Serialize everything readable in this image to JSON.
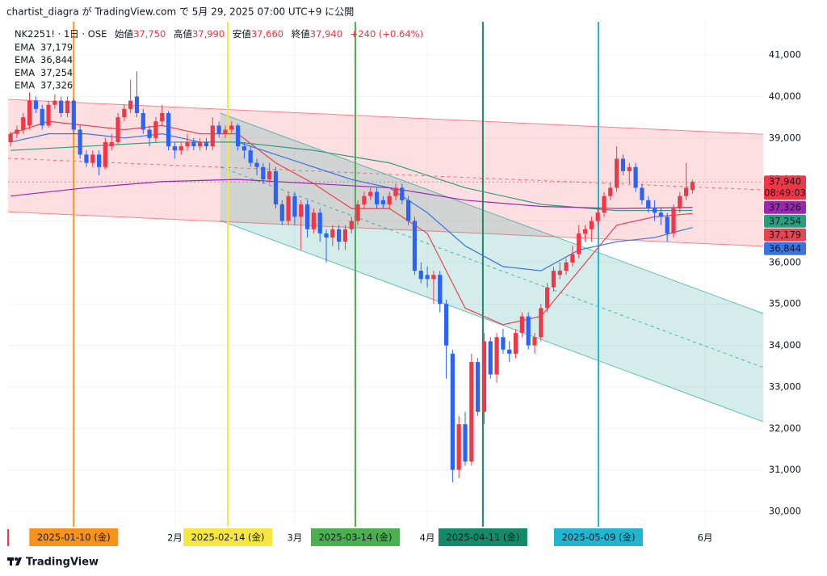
{
  "header": {
    "published": "chartist_diagra が TradingView.com で 5月 29, 2025 07:00 UTC+9 に公開"
  },
  "chart_data": {
    "type": "candlestick",
    "symbol": "NK2251! · 1日 · OSE",
    "ohlc_legend": [
      {
        "name": "始値",
        "value": "37,750"
      },
      {
        "name": "高値",
        "value": "37,990"
      },
      {
        "name": "安値",
        "value": "37,660"
      },
      {
        "name": "終値",
        "value": "37,940"
      }
    ],
    "change": "+240 (+0.64%)",
    "countdown": "08:49:03",
    "up_color": "#f23645",
    "down_color": "#2962ff",
    "grid": true,
    "xlim": [
      -0.4,
      119.2
    ],
    "ylim": [
      29630,
      41800
    ],
    "yticks": [
      {
        "value": 30000,
        "label": "30,000"
      },
      {
        "value": 31000,
        "label": "31,000"
      },
      {
        "value": 32000,
        "label": "32,000"
      },
      {
        "value": 33000,
        "label": "33,000"
      },
      {
        "value": 34000,
        "label": "34,000"
      },
      {
        "value": 35000,
        "label": "35,000"
      },
      {
        "value": 36000,
        "label": "36,000"
      },
      {
        "value": 37000,
        "label": "37,000"
      },
      {
        "value": 38000,
        "label": "38,000"
      },
      {
        "value": 39000,
        "label": "39,000"
      },
      {
        "value": 40000,
        "label": "40,000"
      },
      {
        "value": 41000,
        "label": "41,000"
      }
    ],
    "xticks": [
      {
        "value": 26,
        "label": "2月"
      },
      {
        "value": 45,
        "label": "3月"
      },
      {
        "value": 66,
        "label": "4月"
      },
      {
        "value": 110,
        "label": "6月"
      }
    ],
    "candles": [
      [
        38900,
        39150,
        38800,
        39100
      ],
      [
        39100,
        39300,
        39000,
        39200
      ],
      [
        39200,
        39600,
        39100,
        39500
      ],
      [
        39300,
        40100,
        39200,
        39900
      ],
      [
        39900,
        40000,
        39600,
        39700
      ],
      [
        39700,
        39800,
        39200,
        39300
      ],
      [
        39300,
        39900,
        39250,
        39800
      ],
      [
        39800,
        40050,
        39700,
        39900
      ],
      [
        39900,
        40000,
        39500,
        39600
      ],
      [
        39600,
        40000,
        39500,
        39900
      ],
      [
        39900,
        39950,
        39100,
        39200
      ],
      [
        39200,
        39300,
        38500,
        38600
      ],
      [
        38600,
        38700,
        38300,
        38400
      ],
      [
        38400,
        38700,
        38300,
        38600
      ],
      [
        38600,
        38700,
        38100,
        38300
      ],
      [
        38300,
        39000,
        38250,
        38900
      ],
      [
        38800,
        39100,
        38700,
        38900
      ],
      [
        38900,
        39600,
        38850,
        39500
      ],
      [
        39500,
        39800,
        39400,
        39700
      ],
      [
        39700,
        40400,
        39600,
        39900
      ],
      [
        40000,
        40600,
        39500,
        39600
      ],
      [
        39600,
        39700,
        39100,
        39200
      ],
      [
        39200,
        39300,
        38800,
        39000
      ],
      [
        39000,
        39500,
        38900,
        39400
      ],
      [
        39400,
        39800,
        39300,
        39600
      ],
      [
        39600,
        39650,
        38700,
        38800
      ],
      [
        38800,
        38900,
        38500,
        38700
      ],
      [
        38700,
        38900,
        38600,
        38800
      ],
      [
        38800,
        39100,
        38700,
        38900
      ],
      [
        38900,
        39000,
        38700,
        38800
      ],
      [
        38800,
        39000,
        38700,
        38900
      ],
      [
        38900,
        39000,
        38700,
        38800
      ],
      [
        38800,
        39500,
        38700,
        39300
      ],
      [
        39300,
        39400,
        39000,
        39100
      ],
      [
        39100,
        39300,
        39000,
        39200
      ],
      [
        39200,
        39400,
        39100,
        39300
      ],
      [
        39300,
        39350,
        38700,
        38800
      ],
      [
        38800,
        38900,
        38500,
        38700
      ],
      [
        38700,
        38800,
        38300,
        38400
      ],
      [
        38400,
        38500,
        38100,
        38300
      ],
      [
        38300,
        38400,
        37900,
        38000
      ],
      [
        38000,
        38400,
        37900,
        38200
      ],
      [
        38200,
        38300,
        37300,
        37400
      ],
      [
        37400,
        37500,
        36900,
        37000
      ],
      [
        37000,
        37700,
        36900,
        37600
      ],
      [
        37600,
        37700,
        36900,
        37100
      ],
      [
        37100,
        37500,
        36300,
        37400
      ],
      [
        37400,
        37500,
        36600,
        36800
      ],
      [
        36800,
        37300,
        36700,
        37200
      ],
      [
        37200,
        37300,
        36500,
        36700
      ],
      [
        36700,
        36800,
        36000,
        36600
      ],
      [
        36600,
        36900,
        36400,
        36800
      ],
      [
        36800,
        36900,
        36300,
        36500
      ],
      [
        36500,
        36900,
        36300,
        36800
      ],
      [
        36800,
        37100,
        36700,
        37000
      ],
      [
        37000,
        37500,
        36900,
        37400
      ],
      [
        37400,
        37700,
        37300,
        37600
      ],
      [
        37600,
        37800,
        37500,
        37700
      ],
      [
        37700,
        37800,
        37300,
        37400
      ],
      [
        37500,
        37600,
        37300,
        37400
      ],
      [
        37400,
        37700,
        37300,
        37600
      ],
      [
        37600,
        37900,
        37500,
        37800
      ],
      [
        37800,
        37900,
        37400,
        37500
      ],
      [
        37500,
        37600,
        36900,
        37000
      ],
      [
        37000,
        37100,
        35700,
        35800
      ],
      [
        35800,
        36000,
        35500,
        35600
      ],
      [
        35700,
        35900,
        35400,
        35600
      ],
      [
        35600,
        35800,
        35000,
        35700
      ],
      [
        35700,
        35800,
        34800,
        35000
      ],
      [
        35000,
        35100,
        33200,
        34000
      ],
      [
        33800,
        33900,
        30700,
        31000
      ],
      [
        31000,
        32300,
        30800,
        32100
      ],
      [
        32100,
        32400,
        31100,
        31200
      ],
      [
        31200,
        33800,
        31100,
        33600
      ],
      [
        33600,
        33700,
        32300,
        32400
      ],
      [
        32400,
        34300,
        32100,
        34100
      ],
      [
        34100,
        34200,
        33200,
        33300
      ],
      [
        33300,
        34300,
        33100,
        34200
      ],
      [
        34200,
        34400,
        33800,
        33900
      ],
      [
        33900,
        34100,
        33600,
        33800
      ],
      [
        33800,
        34400,
        33700,
        34300
      ],
      [
        34300,
        34800,
        34200,
        34700
      ],
      [
        34700,
        34800,
        33900,
        34000
      ],
      [
        34000,
        34300,
        33800,
        34200
      ],
      [
        34200,
        35000,
        34100,
        34900
      ],
      [
        34900,
        35500,
        34800,
        35400
      ],
      [
        35400,
        35900,
        35300,
        35800
      ],
      [
        35700,
        36000,
        35600,
        35800
      ],
      [
        35800,
        36100,
        35700,
        36000
      ],
      [
        36000,
        36400,
        35900,
        36200
      ],
      [
        36200,
        36900,
        36100,
        36700
      ],
      [
        36700,
        36900,
        36500,
        36800
      ],
      [
        36800,
        37100,
        36500,
        37000
      ],
      [
        37000,
        37300,
        36900,
        37200
      ],
      [
        37200,
        37700,
        37100,
        37600
      ],
      [
        37600,
        37900,
        37500,
        37800
      ],
      [
        37800,
        38800,
        37700,
        38500
      ],
      [
        38500,
        38600,
        38100,
        38200
      ],
      [
        38200,
        38400,
        37900,
        38300
      ],
      [
        38300,
        38400,
        37700,
        37800
      ],
      [
        37800,
        37900,
        37400,
        37500
      ],
      [
        37500,
        37600,
        37200,
        37300
      ],
      [
        37300,
        37500,
        37000,
        37200
      ],
      [
        37200,
        37300,
        36900,
        37100
      ],
      [
        37100,
        37200,
        36500,
        36700
      ],
      [
        36700,
        37400,
        36600,
        37300
      ],
      [
        37300,
        37700,
        37200,
        37600
      ],
      [
        37600,
        38400,
        37500,
        37800
      ],
      [
        37750,
        37990,
        37660,
        37940
      ]
    ],
    "series": [
      {
        "name": "EMA",
        "color": "#e8434f",
        "last_label": "37,179",
        "x": [
          0,
          6,
          12,
          18,
          24,
          30,
          36,
          42,
          48,
          54,
          60,
          66,
          72,
          78,
          84,
          90,
          96,
          102,
          108
        ],
        "values": [
          39100,
          39400,
          39300,
          39200,
          39300,
          39100,
          39100,
          38400,
          37900,
          37300,
          37300,
          36700,
          34900,
          34500,
          34700,
          35800,
          36900,
          37100,
          37179
        ]
      },
      {
        "name": "EMA",
        "color": "#3a74e0",
        "last_label": "36,844",
        "x": [
          0,
          6,
          12,
          18,
          24,
          30,
          36,
          42,
          48,
          54,
          60,
          66,
          72,
          78,
          84,
          90,
          96,
          102,
          108
        ],
        "values": [
          38900,
          39100,
          39100,
          39000,
          39100,
          38900,
          38900,
          38600,
          38300,
          38000,
          37800,
          37200,
          36400,
          35900,
          35800,
          36300,
          36500,
          36600,
          36844
        ]
      },
      {
        "name": "EMA",
        "color": "#2a9d7c",
        "last_label": "37,254",
        "x": [
          0,
          12,
          24,
          36,
          48,
          60,
          72,
          84,
          96,
          108
        ],
        "values": [
          38700,
          38800,
          38900,
          38900,
          38700,
          38400,
          37800,
          37400,
          37250,
          37254
        ]
      },
      {
        "name": "EMA",
        "color": "#9c27b0",
        "last_label": "37,326",
        "x": [
          0,
          12,
          24,
          36,
          48,
          60,
          72,
          84,
          96,
          108
        ],
        "values": [
          37600,
          37800,
          37950,
          38000,
          37900,
          37800,
          37500,
          37350,
          37300,
          37326
        ]
      }
    ],
    "channels": [
      {
        "color": "#f7525f",
        "fill": "rgba(242,54,69,0.16)",
        "x": [
          -0.4,
          119.2
        ],
        "upper": [
          39930,
          39090
        ],
        "middle": [
          38510,
          37750
        ],
        "lower": [
          37220,
          36390
        ]
      },
      {
        "color": "#26a69a",
        "fill": "rgba(38,166,154,0.2)",
        "x": [
          33.2,
          119.2
        ],
        "upper": [
          39600,
          34770
        ],
        "middle": [
          38300,
          33470
        ],
        "lower": [
          37010,
          32160
        ]
      }
    ],
    "markers": [
      {
        "x": 10,
        "label": "2025-01-10 (金)",
        "color": "#f7931a",
        "text_color": "#131722"
      },
      {
        "x": 34.4,
        "label": "2025-02-14 (金)",
        "color": "#f5e642",
        "text_color": "#131722"
      },
      {
        "x": 54.6,
        "label": "2025-03-14 (金)",
        "color": "#4caf50",
        "text_color": "#131722"
      },
      {
        "x": 74.8,
        "label": "2025-04-11 (金)",
        "color": "#138a6a",
        "text_color": "#ffffff"
      },
      {
        "x": 93.1,
        "label": "2025-05-09 (金)",
        "color": "#22b5cf",
        "text_color": "#131722"
      }
    ]
  },
  "footer": {
    "brand": "TradingView"
  }
}
